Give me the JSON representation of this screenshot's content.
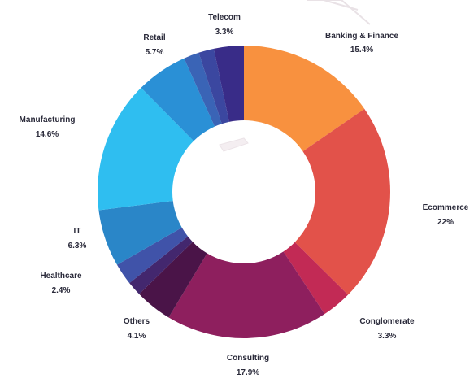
{
  "chart_data": {
    "type": "pie",
    "variant": "donut",
    "title": "",
    "unit": "%",
    "segments": [
      {
        "label": "Banking & Finance",
        "value_text": "15.4%",
        "value": 15.4,
        "color": "#f8913f"
      },
      {
        "label": "Ecommerce",
        "value_text": "22%",
        "value": 22.0,
        "color": "#e2524a"
      },
      {
        "label": "Conglomerate",
        "value_text": "3.3%",
        "value": 3.3,
        "color": "#c22a55"
      },
      {
        "label": "Consulting",
        "value_text": "17.9%",
        "value": 17.9,
        "color": "#8e1f5e"
      },
      {
        "label": "Others",
        "value_text": "4.1%",
        "value": 4.1,
        "color": "#4a1448"
      },
      {
        "label": "",
        "value_text": "",
        "value": 1.6,
        "color": "#43276e"
      },
      {
        "label": "Healthcare",
        "value_text": "2.4%",
        "value": 2.4,
        "color": "#4053a9"
      },
      {
        "label": "IT",
        "value_text": "6.3%",
        "value": 6.3,
        "color": "#2a86c8"
      },
      {
        "label": "Manufacturing",
        "value_text": "14.6%",
        "value": 14.6,
        "color": "#2fbef0"
      },
      {
        "label": "Retail",
        "value_text": "5.7%",
        "value": 5.7,
        "color": "#2a90d6"
      },
      {
        "label": "",
        "value_text": "",
        "value": 1.7,
        "color": "#3a64b6"
      },
      {
        "label": "",
        "value_text": "",
        "value": 1.7,
        "color": "#3b47a0"
      },
      {
        "label": "Telecom",
        "value_text": "3.3%",
        "value": 3.3,
        "color": "#392c88"
      }
    ]
  }
}
